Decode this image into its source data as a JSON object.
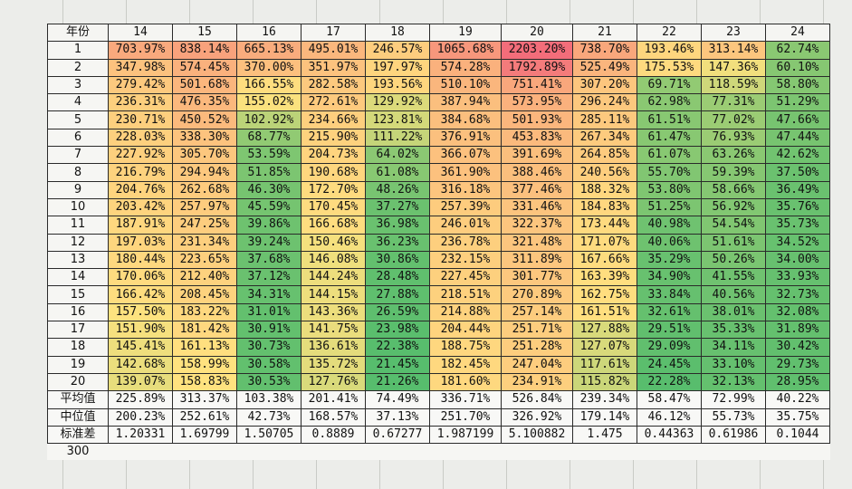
{
  "header": {
    "label": "年份",
    "years": [
      "14",
      "15",
      "16",
      "17",
      "18",
      "19",
      "20",
      "21",
      "22",
      "23",
      "24"
    ]
  },
  "rows": [
    {
      "label": "1",
      "values": [
        "703.97%",
        "838.14%",
        "665.13%",
        "495.01%",
        "246.57%",
        "1065.68%",
        "2203.20%",
        "738.70%",
        "193.46%",
        "313.14%",
        "62.74%"
      ]
    },
    {
      "label": "2",
      "values": [
        "347.98%",
        "574.45%",
        "370.00%",
        "351.97%",
        "197.97%",
        "574.28%",
        "1792.89%",
        "525.49%",
        "175.53%",
        "147.36%",
        "60.10%"
      ]
    },
    {
      "label": "3",
      "values": [
        "279.42%",
        "501.68%",
        "166.55%",
        "282.58%",
        "193.56%",
        "510.10%",
        "751.41%",
        "307.20%",
        "69.71%",
        "118.59%",
        "58.80%"
      ]
    },
    {
      "label": "4",
      "values": [
        "236.31%",
        "476.35%",
        "155.02%",
        "272.61%",
        "129.92%",
        "387.94%",
        "573.95%",
        "296.24%",
        "62.98%",
        "77.31%",
        "51.29%"
      ]
    },
    {
      "label": "5",
      "values": [
        "230.71%",
        "450.52%",
        "102.92%",
        "234.66%",
        "123.81%",
        "384.68%",
        "501.93%",
        "285.11%",
        "61.51%",
        "77.02%",
        "47.66%"
      ]
    },
    {
      "label": "6",
      "values": [
        "228.03%",
        "338.30%",
        "68.77%",
        "215.90%",
        "111.22%",
        "376.91%",
        "453.83%",
        "267.34%",
        "61.47%",
        "76.93%",
        "47.44%"
      ]
    },
    {
      "label": "7",
      "values": [
        "227.92%",
        "305.70%",
        "53.59%",
        "204.73%",
        "64.02%",
        "366.07%",
        "391.69%",
        "264.85%",
        "61.07%",
        "63.26%",
        "42.62%"
      ]
    },
    {
      "label": "8",
      "values": [
        "216.79%",
        "294.94%",
        "51.85%",
        "190.68%",
        "61.08%",
        "361.90%",
        "388.46%",
        "240.56%",
        "55.70%",
        "59.39%",
        "37.50%"
      ]
    },
    {
      "label": "9",
      "values": [
        "204.76%",
        "262.68%",
        "46.30%",
        "172.70%",
        "48.26%",
        "316.18%",
        "377.46%",
        "188.32%",
        "53.80%",
        "58.66%",
        "36.49%"
      ]
    },
    {
      "label": "10",
      "values": [
        "203.42%",
        "257.97%",
        "45.59%",
        "170.45%",
        "37.27%",
        "257.39%",
        "331.46%",
        "184.83%",
        "51.25%",
        "56.92%",
        "35.76%"
      ]
    },
    {
      "label": "11",
      "values": [
        "187.91%",
        "247.25%",
        "39.86%",
        "166.68%",
        "36.98%",
        "246.01%",
        "322.37%",
        "173.44%",
        "40.98%",
        "54.54%",
        "35.73%"
      ]
    },
    {
      "label": "12",
      "values": [
        "197.03%",
        "231.34%",
        "39.24%",
        "150.46%",
        "36.23%",
        "236.78%",
        "321.48%",
        "171.07%",
        "40.06%",
        "51.61%",
        "34.52%"
      ]
    },
    {
      "label": "13",
      "values": [
        "180.44%",
        "223.65%",
        "37.68%",
        "146.08%",
        "30.86%",
        "232.15%",
        "311.89%",
        "167.66%",
        "35.29%",
        "50.26%",
        "34.00%"
      ]
    },
    {
      "label": "14",
      "values": [
        "170.06%",
        "212.40%",
        "37.12%",
        "144.24%",
        "28.48%",
        "227.45%",
        "301.77%",
        "163.39%",
        "34.90%",
        "41.55%",
        "33.93%"
      ]
    },
    {
      "label": "15",
      "values": [
        "166.42%",
        "208.45%",
        "34.31%",
        "144.15%",
        "27.88%",
        "218.51%",
        "270.89%",
        "162.75%",
        "33.84%",
        "40.56%",
        "32.73%"
      ]
    },
    {
      "label": "16",
      "values": [
        "157.50%",
        "183.22%",
        "31.01%",
        "143.36%",
        "26.59%",
        "214.88%",
        "257.14%",
        "161.51%",
        "32.61%",
        "38.01%",
        "32.08%"
      ]
    },
    {
      "label": "17",
      "values": [
        "151.90%",
        "181.42%",
        "30.91%",
        "141.75%",
        "23.98%",
        "204.44%",
        "251.71%",
        "127.88%",
        "29.51%",
        "35.33%",
        "31.89%"
      ]
    },
    {
      "label": "18",
      "values": [
        "145.41%",
        "161.13%",
        "30.73%",
        "136.61%",
        "22.38%",
        "188.75%",
        "251.28%",
        "127.07%",
        "29.09%",
        "34.11%",
        "30.42%"
      ]
    },
    {
      "label": "19",
      "values": [
        "142.68%",
        "158.99%",
        "30.58%",
        "135.72%",
        "21.45%",
        "182.45%",
        "247.04%",
        "117.61%",
        "24.45%",
        "33.10%",
        "29.73%"
      ]
    },
    {
      "label": "20",
      "values": [
        "139.07%",
        "158.83%",
        "30.53%",
        "127.76%",
        "21.26%",
        "181.60%",
        "234.91%",
        "115.82%",
        "22.28%",
        "32.13%",
        "28.95%"
      ]
    }
  ],
  "stats": [
    {
      "label": "平均值",
      "values": [
        "225.89%",
        "313.37%",
        "103.38%",
        "201.41%",
        "74.49%",
        "336.71%",
        "526.84%",
        "239.34%",
        "58.47%",
        "72.99%",
        "40.22%"
      ]
    },
    {
      "label": "中位值",
      "values": [
        "200.23%",
        "252.61%",
        "42.73%",
        "168.57%",
        "37.13%",
        "251.70%",
        "326.92%",
        "179.14%",
        "46.12%",
        "55.73%",
        "35.75%"
      ]
    },
    {
      "label": "标准差",
      "values": [
        "1.20331",
        "1.69799",
        "1.50705",
        "0.8889",
        "0.67277",
        "1.987199",
        "5.100882",
        "1.475",
        "0.44363",
        "0.61986",
        "0.1044"
      ]
    }
  ],
  "footer": {
    "label": "300"
  },
  "colors": {
    "high": "#f36d7a",
    "mid": "#ffe27f",
    "low": "#57bd6d"
  }
}
